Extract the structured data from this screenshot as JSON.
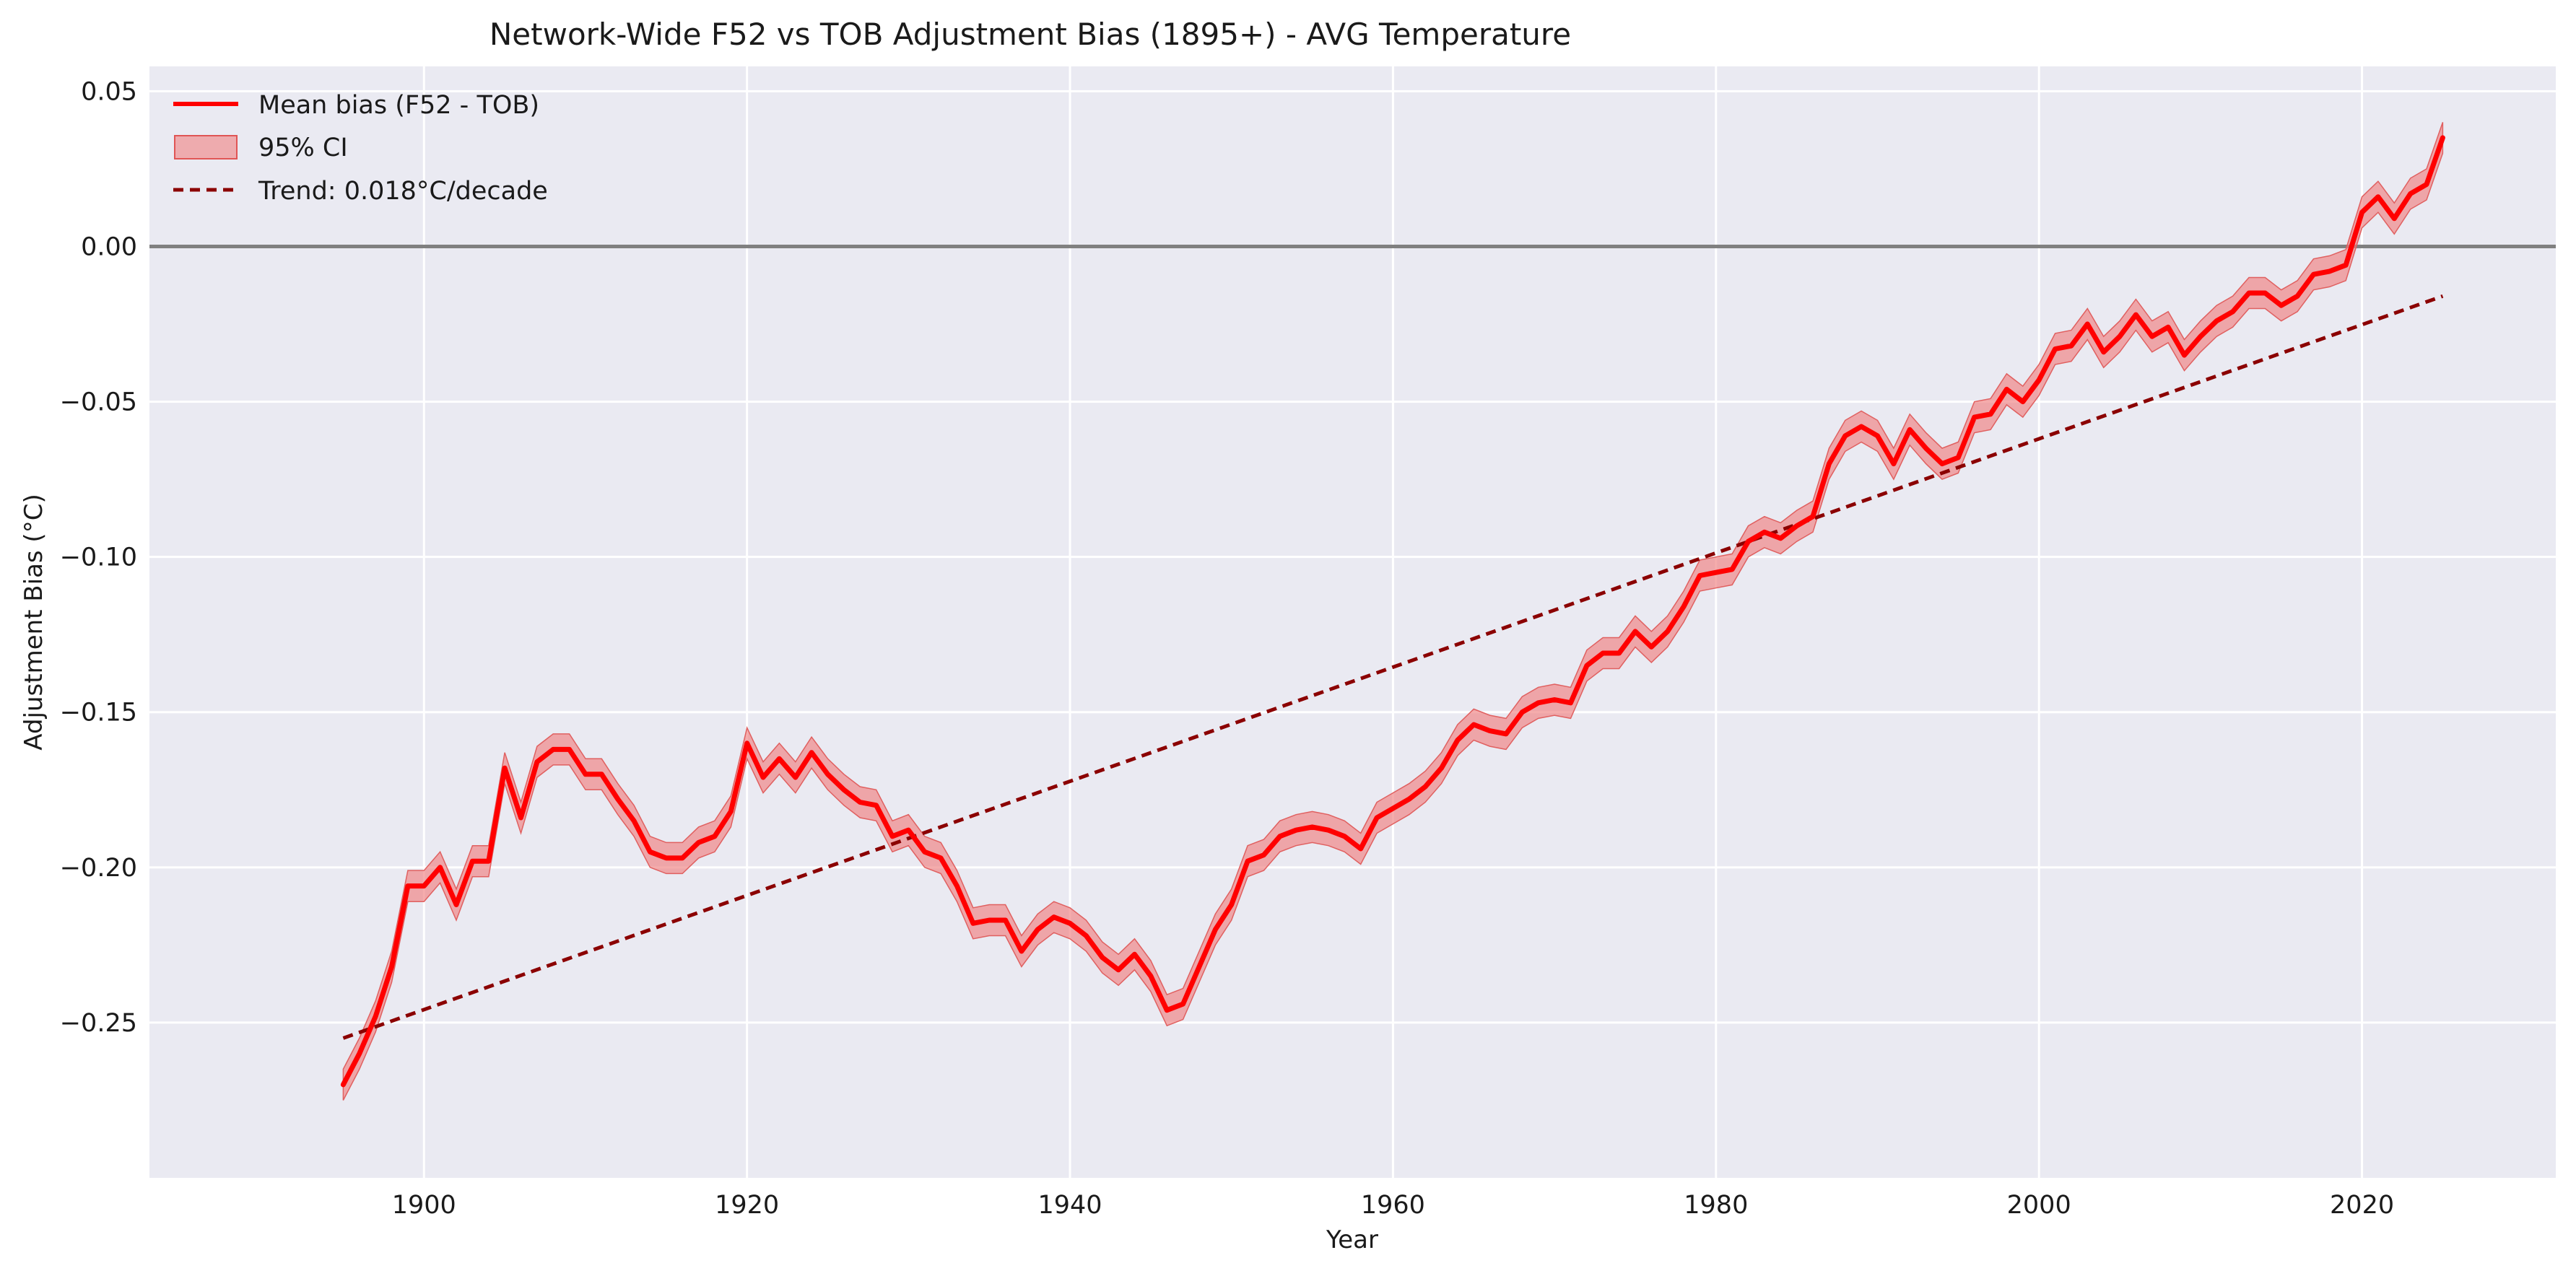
{
  "chart_data": {
    "type": "line",
    "title": "Network-Wide F52 vs TOB Adjustment Bias (1895+) - AVG Temperature",
    "xlabel": "Year",
    "ylabel": "Adjustment Bias (°C)",
    "xlim": [
      1883,
      2032
    ],
    "ylim": [
      -0.3,
      0.058
    ],
    "x_ticks": [
      1900,
      1920,
      1940,
      1960,
      1980,
      2000,
      2020
    ],
    "y_ticks": [
      0.05,
      0.0,
      -0.05,
      -0.1,
      -0.15,
      -0.2,
      -0.25
    ],
    "y_tick_labels": [
      "0.05",
      "0.00",
      "−0.05",
      "−0.10",
      "−0.15",
      "−0.20",
      "−0.25"
    ],
    "grid": true,
    "legend_position": "top-left",
    "reference_line": {
      "y": 0.0,
      "color": "#808080"
    },
    "series": [
      {
        "name": "Mean bias (F52 - TOB)",
        "color": "#ff0000",
        "years": [
          1895,
          1896,
          1897,
          1898,
          1899,
          1900,
          1901,
          1902,
          1903,
          1904,
          1905,
          1906,
          1907,
          1908,
          1909,
          1910,
          1911,
          1912,
          1913,
          1914,
          1915,
          1916,
          1917,
          1918,
          1919,
          1920,
          1921,
          1922,
          1923,
          1924,
          1925,
          1926,
          1927,
          1928,
          1929,
          1930,
          1931,
          1932,
          1933,
          1934,
          1935,
          1936,
          1937,
          1938,
          1939,
          1940,
          1941,
          1942,
          1943,
          1944,
          1945,
          1946,
          1947,
          1948,
          1949,
          1950,
          1951,
          1952,
          1953,
          1954,
          1955,
          1956,
          1957,
          1958,
          1959,
          1960,
          1961,
          1962,
          1963,
          1964,
          1965,
          1966,
          1967,
          1968,
          1969,
          1970,
          1971,
          1972,
          1973,
          1974,
          1975,
          1976,
          1977,
          1978,
          1979,
          1980,
          1981,
          1982,
          1983,
          1984,
          1985,
          1986,
          1987,
          1988,
          1989,
          1990,
          1991,
          1992,
          1993,
          1994,
          1995,
          1996,
          1997,
          1998,
          1999,
          2000,
          2001,
          2002,
          2003,
          2004,
          2005,
          2006,
          2007,
          2008,
          2009,
          2010,
          2011,
          2012,
          2013,
          2014,
          2015,
          2016,
          2017,
          2018,
          2019,
          2020,
          2021,
          2022,
          2023,
          2024,
          2025
        ],
        "values": [
          -0.27,
          -0.26,
          -0.248,
          -0.232,
          -0.206,
          -0.206,
          -0.2,
          -0.212,
          -0.198,
          -0.198,
          -0.168,
          -0.184,
          -0.166,
          -0.162,
          -0.162,
          -0.17,
          -0.17,
          -0.178,
          -0.185,
          -0.195,
          -0.197,
          -0.197,
          -0.192,
          -0.19,
          -0.182,
          -0.16,
          -0.171,
          -0.165,
          -0.171,
          -0.163,
          -0.17,
          -0.175,
          -0.179,
          -0.18,
          -0.19,
          -0.188,
          -0.195,
          -0.197,
          -0.206,
          -0.218,
          -0.217,
          -0.217,
          -0.227,
          -0.22,
          -0.216,
          -0.218,
          -0.222,
          -0.229,
          -0.233,
          -0.228,
          -0.235,
          -0.246,
          -0.244,
          -0.232,
          -0.22,
          -0.212,
          -0.198,
          -0.196,
          -0.19,
          -0.188,
          -0.187,
          -0.188,
          -0.19,
          -0.194,
          -0.184,
          -0.181,
          -0.178,
          -0.174,
          -0.168,
          -0.159,
          -0.154,
          -0.156,
          -0.157,
          -0.15,
          -0.147,
          -0.146,
          -0.147,
          -0.135,
          -0.131,
          -0.131,
          -0.124,
          -0.129,
          -0.124,
          -0.116,
          -0.106,
          -0.105,
          -0.104,
          -0.095,
          -0.092,
          -0.094,
          -0.09,
          -0.087,
          -0.07,
          -0.061,
          -0.058,
          -0.061,
          -0.07,
          -0.059,
          -0.065,
          -0.07,
          -0.068,
          -0.055,
          -0.054,
          -0.046,
          -0.05,
          -0.043,
          -0.033,
          -0.032,
          -0.025,
          -0.034,
          -0.029,
          -0.022,
          -0.029,
          -0.026,
          -0.035,
          -0.029,
          -0.024,
          -0.021,
          -0.015,
          -0.015,
          -0.019,
          -0.016,
          -0.009,
          -0.008,
          -0.006,
          0.011,
          0.016,
          0.009,
          0.017,
          0.02,
          0.035
        ],
        "ci_half_width": 0.005
      },
      {
        "name": "95% CI",
        "color": "#f08080"
      },
      {
        "name": "Trend: 0.018°C/decade",
        "color": "#8b0000",
        "style": "dashed",
        "x": [
          1895,
          2025
        ],
        "values": [
          -0.255,
          -0.016
        ]
      }
    ]
  }
}
